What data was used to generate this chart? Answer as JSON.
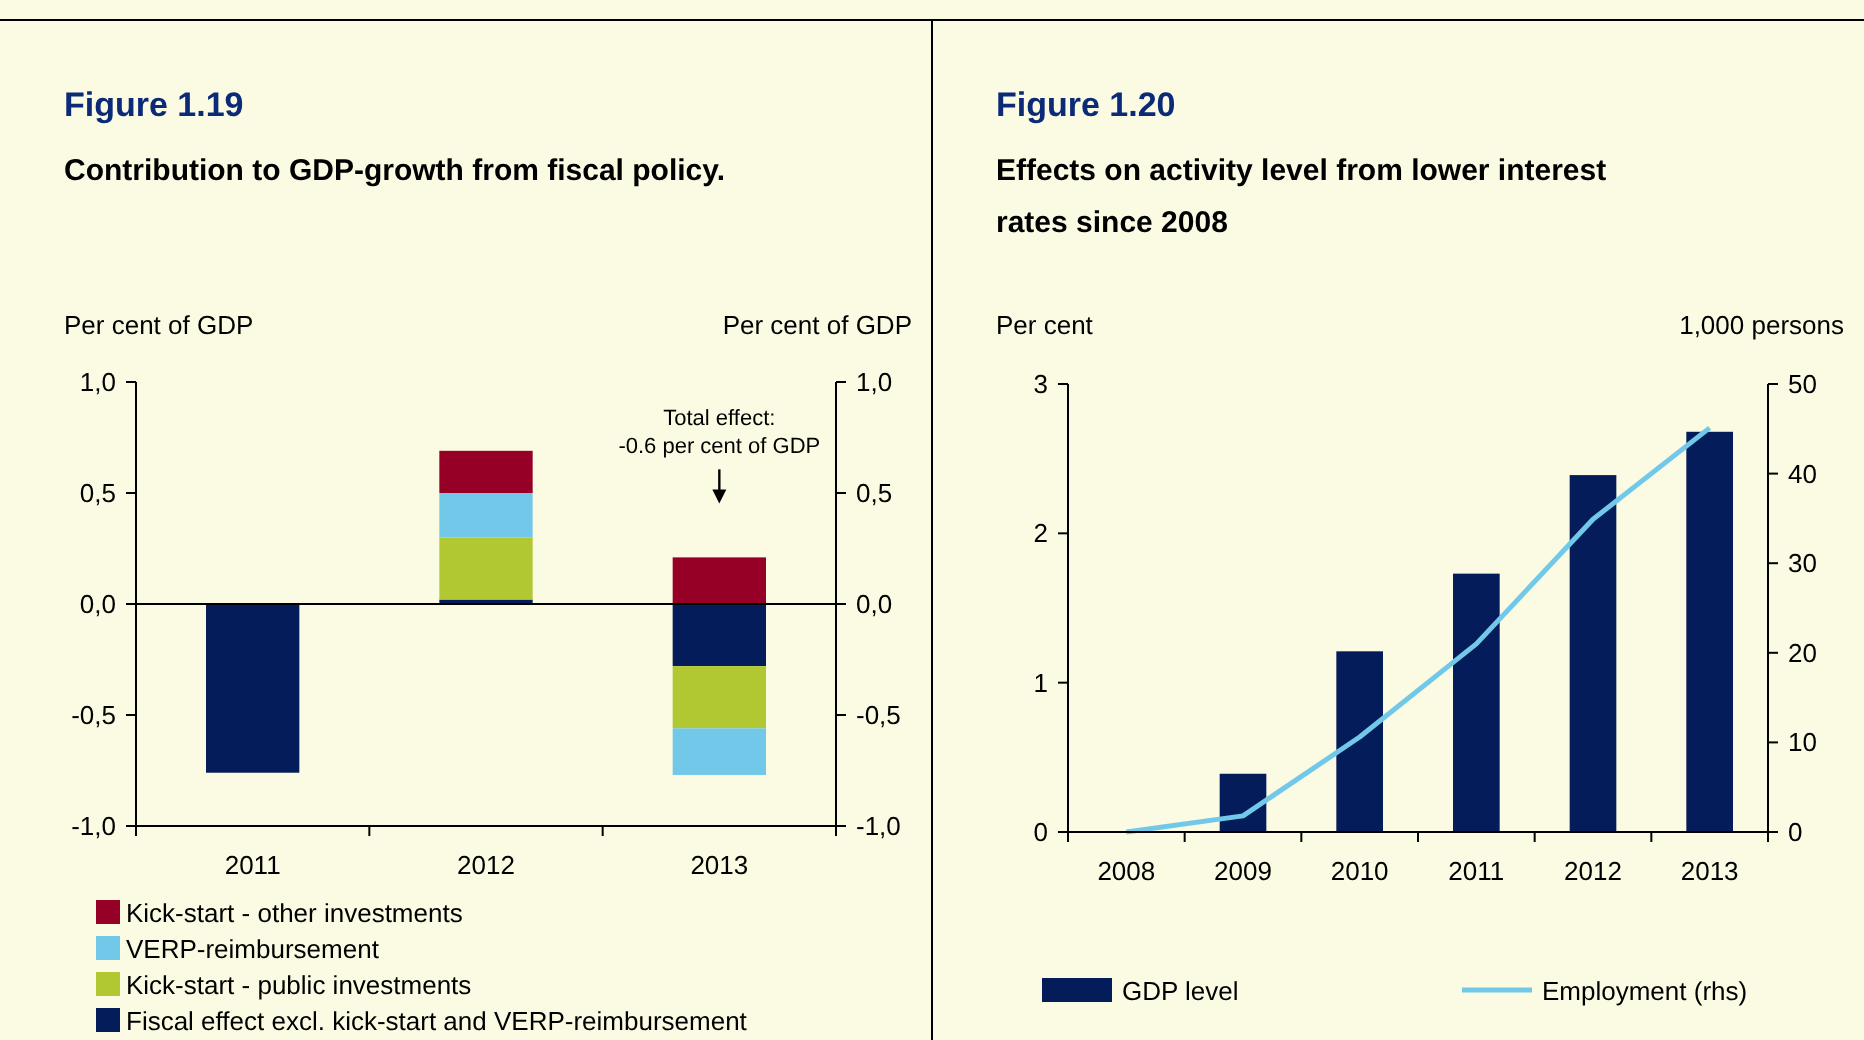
{
  "chart_data": [
    {
      "type": "bar",
      "title": "Figure 1.19",
      "subtitle": "Contribution to GDP-growth from fiscal policy.",
      "ylabel": "Per cent of GDP",
      "y2label": "Per cent of GDP",
      "categories": [
        "2011",
        "2012",
        "2013"
      ],
      "stacked": true,
      "legend": "bottom",
      "series": [
        {
          "name": "Fiscal effect excl. kick-start and VERP-reimbursement",
          "color": "#041c5a",
          "values": [
            -0.76,
            0.02,
            -0.28
          ]
        },
        {
          "name": "Kick-start - public investments",
          "color": "#b2c832",
          "values": [
            null,
            0.28,
            -0.28
          ]
        },
        {
          "name": "VERP-reimbursement",
          "color": "#72c8e8",
          "values": [
            null,
            0.2,
            -0.21
          ]
        },
        {
          "name": "Kick-start - other investments",
          "color": "#960027",
          "values": [
            null,
            0.19,
            0.21
          ]
        }
      ],
      "ylim": [
        -1,
        1
      ],
      "yticks": [
        {
          "value": -1,
          "label": "-1,0"
        },
        {
          "value": -0.5,
          "label": "-0,5"
        },
        {
          "value": 0,
          "label": "0,0"
        },
        {
          "value": 0.5,
          "label": "0,5"
        },
        {
          "value": 1,
          "label": "1,0"
        }
      ],
      "y2lim": [
        -1,
        1
      ],
      "y2ticks": [
        {
          "value": -1,
          "label": "-1,0"
        },
        {
          "value": -0.5,
          "label": "-0,5"
        },
        {
          "value": 0,
          "label": "0,0"
        },
        {
          "value": 0.5,
          "label": "0,5"
        },
        {
          "value": 1,
          "label": "1,0"
        }
      ],
      "ref_lines": [
        {
          "axis": "y",
          "value": 0,
          "color": "#000000"
        }
      ],
      "annotations": [
        "Total effect:\n-0.6 per cent of GDP"
      ]
    },
    {
      "type": "bar",
      "title": "Figure 1.20",
      "subtitle": "Effects on activity level from lower interest rates since 2008",
      "ylabel": "Per cent",
      "y2label": "1,000 persons",
      "categories": [
        "2008",
        "2009",
        "2010",
        "2011",
        "2012",
        "2013"
      ],
      "legend": "bottom",
      "series": [
        {
          "name": "GDP level",
          "color": "#041c5a",
          "values": [
            0,
            0.39,
            1.21,
            1.73,
            2.39,
            2.68
          ]
        },
        {
          "name": "Employment (rhs)",
          "type": "line",
          "axis": "y2",
          "color": "#72c8e8",
          "values": [
            0,
            1.8,
            10.6,
            21.0,
            34.9,
            45.1
          ]
        }
      ],
      "ylim": [
        0,
        3
      ],
      "yticks": [
        0,
        1,
        2,
        3
      ],
      "y2lim": [
        0,
        50
      ],
      "y2ticks": [
        0,
        10,
        20,
        30,
        40,
        50
      ]
    }
  ]
}
